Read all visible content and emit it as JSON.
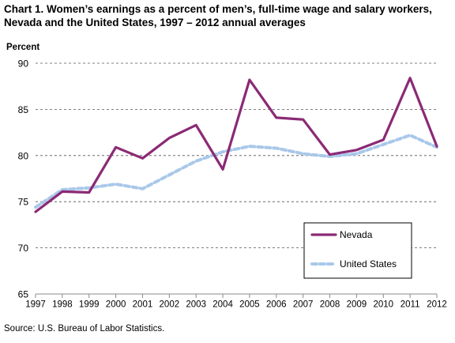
{
  "title_line1": "Chart 1. Women’s earnings as a percent of men’s, full-time wage and salary workers,",
  "title_line2": "Nevada and the United States, 1997 – 2012 annual averages",
  "source": "Source: U.S.  Bureau of Labor Statistics.",
  "chart_data": {
    "type": "line",
    "title": "Chart 1. Women’s earnings as a percent of men’s, full-time wage and salary workers, Nevada and the United States, 1997 – 2012 annual averages",
    "ylabel": "Percent",
    "xlabel": "",
    "x": [
      "1997",
      "1998",
      "1999",
      "2000",
      "2001",
      "2002",
      "2003",
      "2004",
      "2005",
      "2006",
      "2007",
      "2008",
      "2009",
      "2010",
      "2011",
      "2012"
    ],
    "ylim": [
      65,
      90
    ],
    "yticks": [
      65,
      70,
      75,
      80,
      85,
      90
    ],
    "grid": "horizontal dashed",
    "legend_position": "bottom-right",
    "series": [
      {
        "name": "Nevada",
        "color": "#8B2A75",
        "style": "solid",
        "values": [
          73.9,
          76.1,
          76.0,
          80.9,
          79.7,
          81.9,
          83.3,
          78.5,
          88.2,
          84.1,
          83.9,
          80.1,
          80.6,
          81.7,
          88.4,
          81.0
        ]
      },
      {
        "name": "United States",
        "color": "#A9C8EA",
        "style": "dashed",
        "values": [
          74.4,
          76.3,
          76.5,
          76.9,
          76.4,
          77.9,
          79.4,
          80.4,
          81.0,
          80.8,
          80.2,
          79.9,
          80.2,
          81.2,
          82.2,
          80.9
        ]
      }
    ]
  }
}
